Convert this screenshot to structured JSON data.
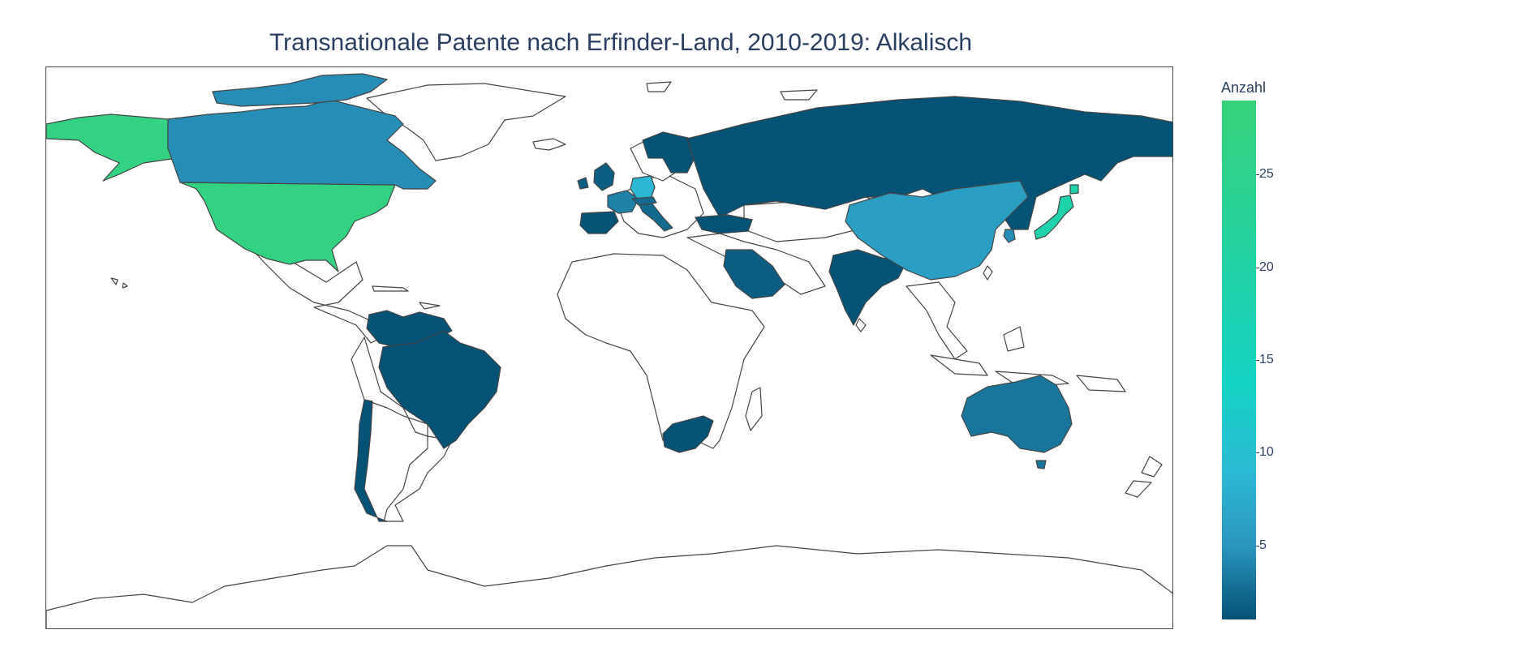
{
  "title": "Transnationale Patente nach Erfinder-Land, 2010-2019: Alkalisch",
  "colorbar": {
    "title": "Anzahl",
    "ticks": [
      "5",
      "10",
      "15",
      "20",
      "25"
    ],
    "tick_values": [
      5,
      10,
      15,
      20,
      25
    ],
    "range": [
      1,
      29
    ],
    "colorscale": [
      "#045275",
      "#2a95be",
      "#2cb9d5",
      "#14d3c4",
      "#1fd2a9",
      "#36d27a"
    ]
  },
  "colors": {
    "missing_land": "#ffffff",
    "border": "#444444"
  },
  "chart_data": {
    "type": "choropleth",
    "title": "Transnationale Patente nach Erfinder-Land, 2010-2019: Alkalisch",
    "colorbar_title": "Anzahl",
    "locations": [
      {
        "country": "United States",
        "value": 28
      },
      {
        "country": "Japan",
        "value": 23
      },
      {
        "country": "Germany",
        "value": 12
      },
      {
        "country": "China",
        "value": 8
      },
      {
        "country": "Canada",
        "value": 6
      },
      {
        "country": "France",
        "value": 5
      },
      {
        "country": "Australia",
        "value": 4
      },
      {
        "country": "South Korea",
        "value": 6
      },
      {
        "country": "United Kingdom",
        "value": 2
      },
      {
        "country": "Switzerland",
        "value": 3
      },
      {
        "country": "Italy",
        "value": 3
      },
      {
        "country": "Saudi Arabia",
        "value": 2
      },
      {
        "country": "India",
        "value": 1
      },
      {
        "country": "Russia",
        "value": 1
      },
      {
        "country": "Spain",
        "value": 1
      },
      {
        "country": "Turkey",
        "value": 1
      },
      {
        "country": "Brazil",
        "value": 1
      },
      {
        "country": "Colombia",
        "value": 1
      },
      {
        "country": "Venezuela",
        "value": 1
      },
      {
        "country": "Chile",
        "value": 1
      },
      {
        "country": "South Africa",
        "value": 1
      },
      {
        "country": "Norway",
        "value": 1
      },
      {
        "country": "Sweden",
        "value": 1
      },
      {
        "country": "Finland",
        "value": 1
      }
    ]
  }
}
